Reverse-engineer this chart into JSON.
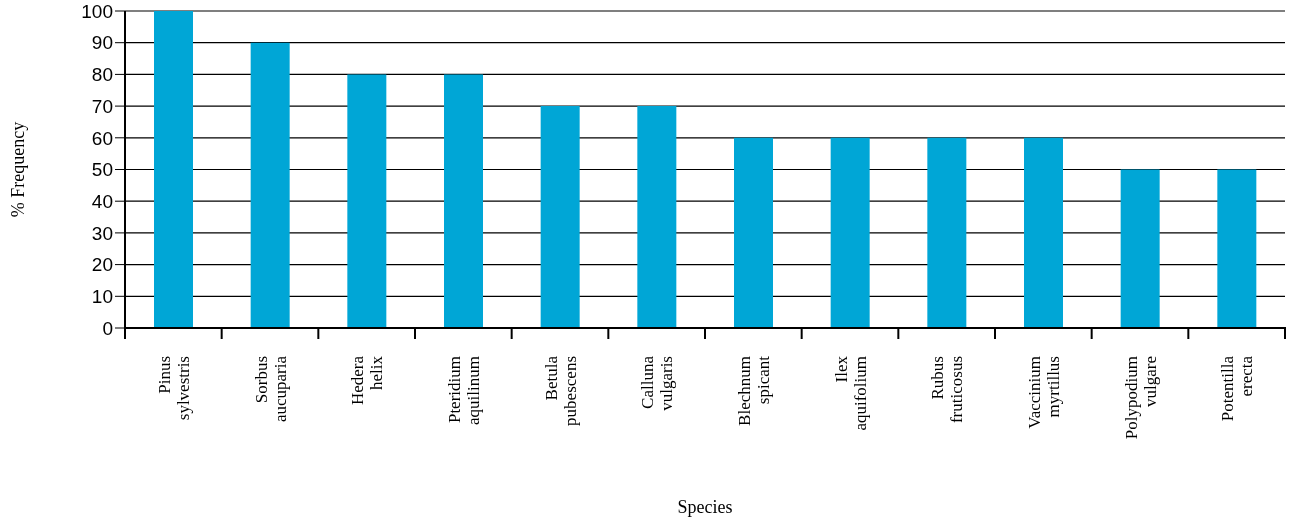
{
  "chart_data": {
    "type": "bar",
    "xlabel": "Species",
    "ylabel": "% Frequency",
    "categories": [
      "Pinus sylvestris",
      "Sorbus aucuparia",
      "Hedera helix",
      "Pteridium aquilinum",
      "Betula pubescens",
      "Calluna vulgaris",
      "Blechnum spicant",
      "Ilex aquifolium",
      "Rubus fruticosus",
      "Vaccinium myrtillus",
      "Polypodium vulgare",
      "Potentilla erecta"
    ],
    "values": [
      100,
      90,
      80,
      80,
      70,
      70,
      60,
      60,
      60,
      60,
      50,
      50
    ],
    "color": "#00a6d6",
    "ylim": [
      0,
      100
    ],
    "yticks": [
      0,
      10,
      20,
      30,
      40,
      50,
      60,
      70,
      80,
      90,
      100
    ],
    "grid": "y"
  }
}
